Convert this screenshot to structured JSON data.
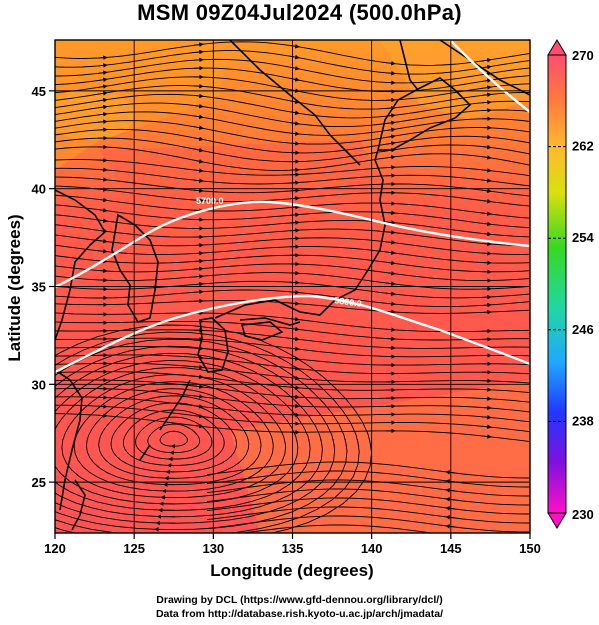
{
  "title": "MSM 09Z04Jul2024 (500.0hPa)",
  "map": {
    "lon_range": [
      120,
      150
    ],
    "lat_range": [
      22.4,
      47.6
    ],
    "xticks": [
      120,
      125,
      130,
      135,
      140,
      145,
      150
    ],
    "yticks": [
      25,
      30,
      35,
      40,
      45
    ],
    "xlabel": "Longitude (degrees)",
    "ylabel": "Latitude  (degrees)",
    "grid": true,
    "contour_labels": [
      "5700.0",
      "5800.0"
    ],
    "field": "temperature",
    "streamlines": true
  },
  "colorbar": {
    "labels": [
      "270",
      "262",
      "254",
      "246",
      "238",
      "230"
    ],
    "range": [
      230,
      270
    ],
    "colors": [
      "#ff4d6e",
      "#ff7a3c",
      "#ffb830",
      "#d9e010",
      "#38d820",
      "#20d8a0",
      "#20a8ff",
      "#2038ff",
      "#8010e0",
      "#ff10c8"
    ]
  },
  "credits": {
    "line1": "Drawing by DCL (https://www.gfd-dennou.org/library/dcl/)",
    "line2": "Data from http://database.rish.kyoto-u.ac.jp/arch/jmadata/"
  }
}
